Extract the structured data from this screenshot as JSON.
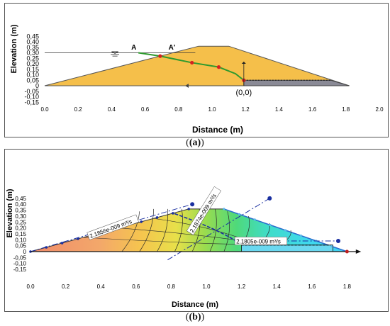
{
  "panel_a": {
    "ylabel": "Elevation (m)",
    "xlabel": "Distance (m)",
    "yticks": [
      "0,45",
      "0,40",
      "0,35",
      "0,30",
      "0,25",
      "0,20",
      "0,15",
      "0,10",
      "0,05",
      "0",
      "-0,05",
      "-0,10",
      "-0,15"
    ],
    "xticks": [
      "0.0",
      "0.2",
      "0.4",
      "0.6",
      "0.8",
      "1.0",
      "1.2",
      "1.4",
      "1.6",
      "1.8",
      "2.0"
    ],
    "label_A": "A",
    "label_A_prime": "A'",
    "origin_label": "(0,0)",
    "colors": {
      "dam": "#f5bf4a",
      "drain": "#8a8a96",
      "phreatic": "#2e9a2e",
      "point": "#d62020"
    }
  },
  "panel_b": {
    "ylabel": "Elevation (m)",
    "xlabel": "Distance (m)",
    "yticks": [
      "0,45",
      "0,40",
      "0,35",
      "0,30",
      "0,25",
      "0,20",
      "0,15",
      "0,10",
      "0,05",
      "0",
      "-0,05",
      "-0,10",
      "-0,15"
    ],
    "xticks": [
      "0.0",
      "0.2",
      "0.4",
      "0.6",
      "0.8",
      "1.0",
      "1.2",
      "1.4",
      "1.6",
      "1.8"
    ],
    "flux_labels": [
      "2.1856e-009 m³/s",
      "2.1874e-009 m³/s",
      "2.1805e-009 m³/s"
    ]
  },
  "captions": {
    "a": "(a)",
    "b": "(b)"
  }
}
